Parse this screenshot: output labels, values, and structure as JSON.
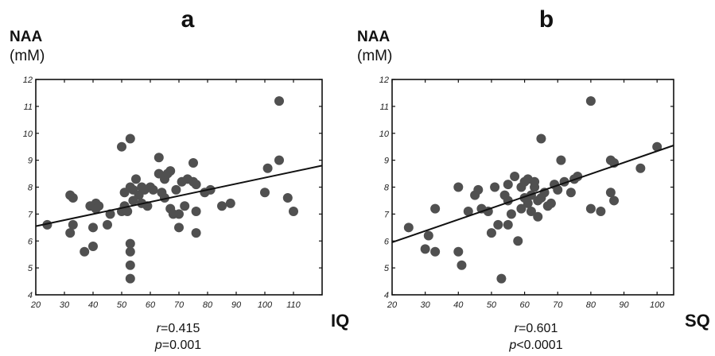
{
  "chart_data": [
    {
      "type": "scatter",
      "panel_label": "a",
      "ylabel": "NAA",
      "yunit": "(mM)",
      "xlabel": "IQ",
      "xlim": [
        20,
        120
      ],
      "ylim": [
        4,
        12
      ],
      "xticks": [
        "20",
        "30",
        "40",
        "50",
        "60",
        "70",
        "80",
        "90",
        "100",
        "110"
      ],
      "yticks": [
        "4",
        "5",
        "6",
        "7",
        "8",
        "9",
        "10",
        "11",
        "12"
      ],
      "annotations": {
        "r_symbol": "r",
        "r_value": "=0.415",
        "p_symbol": "p",
        "p_value": "=0.001"
      },
      "trendline": {
        "x": [
          20,
          120
        ],
        "y": [
          6.55,
          8.8
        ]
      },
      "marker_color": "#505050",
      "points": {
        "x": [
          24,
          32,
          32,
          33,
          33,
          37,
          39,
          40,
          40,
          41,
          41,
          42,
          45,
          46,
          50,
          50,
          51,
          51,
          52,
          53,
          53,
          53,
          53,
          53,
          53,
          54,
          54,
          55,
          56,
          57,
          57,
          58,
          59,
          60,
          61,
          63,
          63,
          64,
          65,
          65,
          66,
          67,
          67,
          68,
          69,
          70,
          70,
          71,
          72,
          73,
          75,
          75,
          76,
          76,
          76,
          79,
          81,
          85,
          88,
          100,
          101,
          105,
          105,
          108,
          110
        ],
        "y": [
          6.6,
          7.7,
          6.3,
          7.6,
          6.6,
          5.6,
          7.3,
          5.8,
          6.5,
          7.4,
          7.2,
          7.3,
          6.6,
          7.0,
          9.5,
          7.1,
          7.8,
          7.3,
          7.1,
          9.8,
          8.0,
          5.9,
          5.6,
          5.1,
          4.6,
          7.9,
          7.5,
          8.3,
          7.7,
          7.4,
          8.0,
          7.9,
          7.3,
          8.0,
          7.9,
          9.1,
          8.5,
          7.8,
          8.3,
          7.6,
          8.5,
          7.2,
          8.6,
          7.0,
          7.9,
          6.5,
          7.0,
          8.2,
          7.3,
          8.3,
          8.2,
          8.9,
          7.1,
          6.3,
          8.1,
          7.8,
          7.9,
          7.3,
          7.4,
          7.8,
          8.7,
          11.2,
          9.0,
          7.6,
          7.1
        ]
      }
    },
    {
      "type": "scatter",
      "panel_label": "b",
      "ylabel": "NAA",
      "yunit": "(mM)",
      "xlabel": "SQ",
      "xlim": [
        20,
        105
      ],
      "ylim": [
        4,
        12
      ],
      "xticks": [
        "20",
        "30",
        "40",
        "50",
        "60",
        "70",
        "80",
        "90",
        "100"
      ],
      "yticks": [
        "4",
        "5",
        "6",
        "7",
        "8",
        "9",
        "10",
        "11",
        "12"
      ],
      "annotations": {
        "r_symbol": "r",
        "r_value": "=0.601",
        "p_symbol": "p",
        "p_value": "<0.0001"
      },
      "trendline": {
        "x": [
          20,
          105
        ],
        "y": [
          5.95,
          9.55
        ]
      },
      "marker_color": "#505050",
      "points": {
        "x": [
          25,
          30,
          31,
          33,
          33,
          40,
          40,
          41,
          43,
          45,
          46,
          47,
          49,
          50,
          51,
          52,
          53,
          54,
          55,
          55,
          55,
          56,
          57,
          58,
          59,
          59,
          60,
          60,
          61,
          61,
          62,
          62,
          63,
          63,
          64,
          64,
          65,
          65,
          66,
          67,
          68,
          69,
          70,
          71,
          72,
          74,
          75,
          76,
          80,
          80,
          83,
          86,
          86,
          87,
          87,
          95,
          100
        ],
        "y": [
          6.5,
          5.7,
          6.2,
          7.2,
          5.6,
          8.0,
          5.6,
          5.1,
          7.1,
          7.7,
          7.9,
          7.2,
          7.1,
          6.3,
          8.0,
          6.6,
          4.6,
          7.7,
          8.1,
          7.5,
          6.6,
          7.0,
          8.4,
          6.0,
          8.0,
          7.2,
          7.6,
          8.2,
          7.4,
          8.3,
          7.7,
          7.1,
          8.0,
          8.2,
          7.5,
          6.9,
          7.6,
          9.8,
          7.8,
          7.3,
          7.4,
          8.1,
          7.9,
          9.0,
          8.2,
          7.8,
          8.3,
          8.4,
          11.2,
          7.2,
          7.1,
          9.0,
          7.8,
          7.5,
          8.9,
          8.7,
          9.5
        ]
      }
    }
  ]
}
